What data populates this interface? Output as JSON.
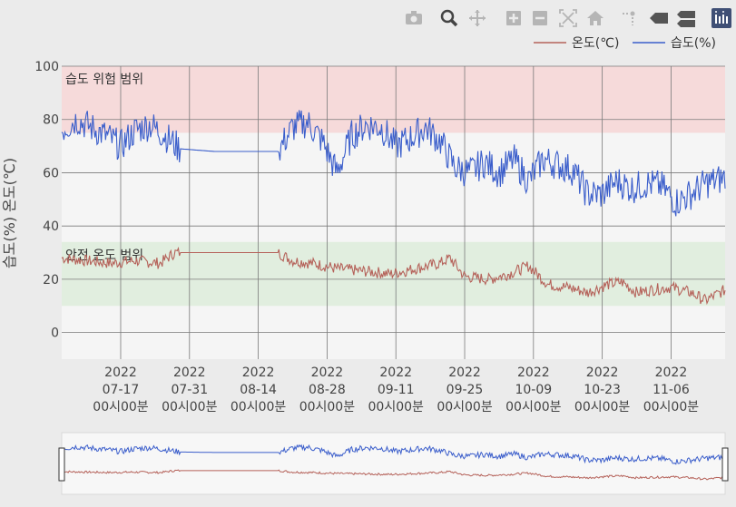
{
  "toolbar": {
    "icons": [
      "camera-icon",
      "zoom-icon",
      "pan-icon",
      "zoom-in-icon",
      "zoom-out-icon",
      "autoscale-icon",
      "reset-axes-icon",
      "spike-lines-icon",
      "hover-closest-icon",
      "hover-compare-icon",
      "plotly-logo-icon"
    ],
    "active": "zoom-icon",
    "logo_color": "#3f4f75"
  },
  "chart_data": {
    "type": "line",
    "ylabel": "습도(%)   온도(℃)",
    "ylim": [
      -10,
      100
    ],
    "yticks": [
      0,
      20,
      40,
      60,
      80,
      100
    ],
    "xlim": [
      "2022-07-05",
      "2022-11-17"
    ],
    "xticks": [
      {
        "date": "2022-07-17",
        "label": [
          "2022",
          "07-17",
          "00시00분"
        ]
      },
      {
        "date": "2022-07-31",
        "label": [
          "2022",
          "07-31",
          "00시00분"
        ]
      },
      {
        "date": "2022-08-14",
        "label": [
          "2022",
          "08-14",
          "00시00분"
        ]
      },
      {
        "date": "2022-08-28",
        "label": [
          "2022",
          "08-28",
          "00시00분"
        ]
      },
      {
        "date": "2022-09-11",
        "label": [
          "2022",
          "09-11",
          "00시00분"
        ]
      },
      {
        "date": "2022-09-25",
        "label": [
          "2022",
          "09-25",
          "00시00분"
        ]
      },
      {
        "date": "2022-10-09",
        "label": [
          "2022",
          "10-09",
          "00시00분"
        ]
      },
      {
        "date": "2022-10-23",
        "label": [
          "2022",
          "10-23",
          "00시00분"
        ]
      },
      {
        "date": "2022-11-06",
        "label": [
          "2022",
          "11-06",
          "00시00분"
        ]
      }
    ],
    "bands": [
      {
        "label": "습도 위험 범위",
        "y0": 75,
        "y1": 100,
        "color": "#f6dada"
      },
      {
        "label": "안전 온도 범위",
        "y0": 10,
        "y1": 34,
        "color": "#e1eedf"
      }
    ],
    "legend_position": "top-right",
    "series": [
      {
        "name": "온도(℃)",
        "color": "#b5625a",
        "x": [
          "2022-07-05",
          "2022-07-10",
          "2022-07-15",
          "2022-07-20",
          "2022-07-25",
          "2022-07-28",
          "2022-08-05",
          "2022-08-12",
          "2022-08-18",
          "2022-08-21",
          "2022-08-25",
          "2022-08-30",
          "2022-09-05",
          "2022-09-10",
          "2022-09-15",
          "2022-09-20",
          "2022-09-22",
          "2022-09-25",
          "2022-09-30",
          "2022-10-04",
          "2022-10-08",
          "2022-10-12",
          "2022-10-16",
          "2022-10-20",
          "2022-10-24",
          "2022-10-27",
          "2022-10-30",
          "2022-11-02",
          "2022-11-06",
          "2022-11-10",
          "2022-11-13",
          "2022-11-17"
        ],
        "values": [
          28,
          27,
          26,
          27,
          26,
          30,
          30,
          30,
          30,
          27,
          26,
          24,
          23,
          22,
          24,
          26,
          28,
          21,
          20,
          22,
          25,
          18,
          17,
          15,
          18,
          19,
          15,
          16,
          17,
          15,
          12,
          16
        ]
      },
      {
        "name": "습도(%)",
        "color": "#3b5ecb",
        "x": [
          "2022-07-05",
          "2022-07-08",
          "2022-07-11",
          "2022-07-14",
          "2022-07-17",
          "2022-07-20",
          "2022-07-23",
          "2022-07-26",
          "2022-07-29",
          "2022-08-05",
          "2022-08-12",
          "2022-08-18",
          "2022-08-21",
          "2022-08-24",
          "2022-08-27",
          "2022-08-30",
          "2022-09-02",
          "2022-09-05",
          "2022-09-08",
          "2022-09-11",
          "2022-09-14",
          "2022-09-17",
          "2022-09-20",
          "2022-09-23",
          "2022-09-26",
          "2022-09-29",
          "2022-10-02",
          "2022-10-05",
          "2022-10-08",
          "2022-10-11",
          "2022-10-14",
          "2022-10-17",
          "2022-10-20",
          "2022-10-23",
          "2022-10-26",
          "2022-10-29",
          "2022-11-01",
          "2022-11-04",
          "2022-11-07",
          "2022-11-10",
          "2022-11-13",
          "2022-11-17"
        ],
        "values": [
          76,
          80,
          77,
          74,
          70,
          76,
          78,
          74,
          69,
          68,
          68,
          68,
          77,
          79,
          72,
          60,
          74,
          78,
          77,
          70,
          73,
          77,
          72,
          62,
          60,
          64,
          60,
          65,
          57,
          65,
          63,
          61,
          52,
          52,
          57,
          54,
          56,
          55,
          49,
          52,
          56,
          58
        ]
      }
    ]
  }
}
